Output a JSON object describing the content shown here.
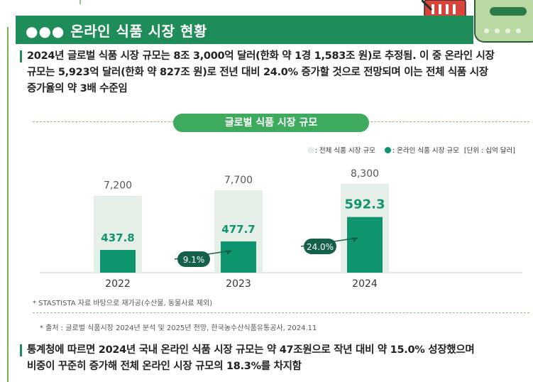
{
  "header": {
    "dots": "●●●",
    "title": "온라인 식품 시장 현황"
  },
  "intro": {
    "lines": [
      "2024년 글로벌 식품 시장 규모는 8조 3,000억 달러(한화 약 1경 1,583조 원)로 추정됨. 이 중 온라인 시장",
      "규모는 5,923억 달러(한화 약 827조 원)로 전년 대비 24.0% 증가할 것으로 전망되며 이는 전체 식품 시장",
      "증가율의 약 3배 수준임"
    ]
  },
  "chart_data": {
    "type": "bar",
    "title": "글로벌 식품 시장 규모",
    "categories": [
      "2022",
      "2023",
      "2024"
    ],
    "series": [
      {
        "name": "전체 식품 시장 규모",
        "color": "#e6eee8",
        "values": [
          7200,
          7700,
          8300
        ],
        "labels": [
          "7,200",
          "7,700",
          "8,300"
        ]
      },
      {
        "name": "온라인 식품 시장 규모",
        "color": "#0f9470",
        "values": [
          437.8,
          477.7,
          592.3
        ],
        "labels": [
          "437.8",
          "477.7",
          "592.3"
        ]
      }
    ],
    "growth": [
      "9.1%",
      "24.0%"
    ],
    "unit": "[단위 : 십억 달러]",
    "legend_total": ": 전체 식품 시장 규모",
    "legend_online": ": 온라인 식품 시장 규모",
    "note": "* STASTISTA 자료 바탕으로 재가공(수산물, 동물사료 제외)"
  },
  "source": "* 출처 : 글로벌 식품시장 2024년 분석 및 2025년 전망, 한국농수산식품유통공사, 2024.11",
  "outro": {
    "lines": [
      "통계청에 따르면 2024년 국내 온라인 식품 시장 규모는 약 47조원으로 작년 대비 약 15.0% 성장했으며",
      "비중이 꾸준히 증가해 전체 온라인 시장 규모의 18.3%를 차지함"
    ]
  },
  "colors": {
    "header": "#1f8d59",
    "pill": "#3daa5e",
    "online": "#0f9470",
    "total": "#e6eee8",
    "growth": "#15604a"
  }
}
